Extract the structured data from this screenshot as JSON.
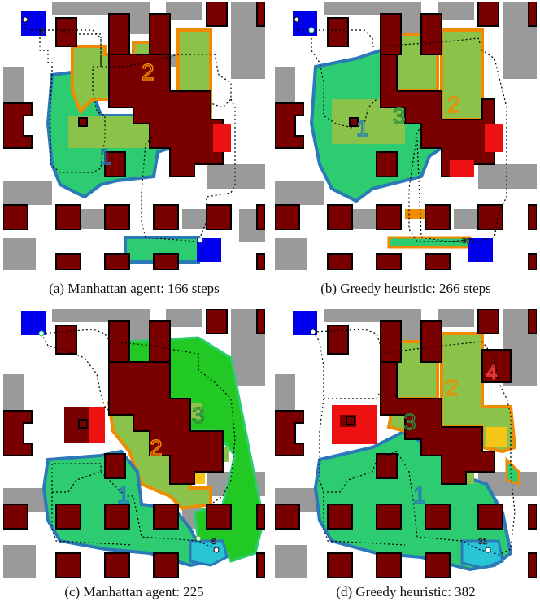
{
  "colors": {
    "background": "#ffffff",
    "wall": "#7a0000",
    "obstacle": "#9a9a9a",
    "goal": "#0000ee",
    "region_green": "#2ecc71",
    "region_lime": "#8bc34a",
    "region_bright_green": "#22c922",
    "region_red": "#ee1111",
    "region_yellow": "#f5c518",
    "region_cyan": "#29c4d6",
    "outline_blue": "#2a7ab8",
    "outline_orange": "#f08a00",
    "path": "#000000"
  },
  "panels": [
    {
      "caption": "(a) Manhattan agent: 166 steps",
      "region_labels": [
        {
          "text": "1",
          "color": "#2a7ab8"
        },
        {
          "text": "2",
          "color": "#f08a00"
        }
      ],
      "agent_markers": [
        {
          "text": "5"
        }
      ]
    },
    {
      "caption": "(b) Greedy heuristic: 266 steps",
      "region_labels": [
        {
          "text": "1",
          "color": "#2a7ab8"
        },
        {
          "text": "2",
          "color": "#f08a00"
        },
        {
          "text": "3",
          "color": "#2e8b3a"
        }
      ],
      "agent_markers": [
        {
          "text": "31"
        }
      ]
    },
    {
      "caption": "(c) Manhattan agent: 225",
      "region_labels": [
        {
          "text": "1",
          "color": "#2a7ab8"
        },
        {
          "text": "2",
          "color": "#f08a00"
        },
        {
          "text": "3",
          "color": "#2e8b3a"
        }
      ],
      "agent_markers": [
        {
          "text": "6"
        }
      ]
    },
    {
      "caption": "(d) Greedy heuristic: 382",
      "region_labels": [
        {
          "text": "1",
          "color": "#2a7ab8"
        },
        {
          "text": "2",
          "color": "#f08a00"
        },
        {
          "text": "3",
          "color": "#2e8b3a"
        },
        {
          "text": "4",
          "color": "#e53935"
        }
      ],
      "agent_markers": [
        {
          "text": "31"
        }
      ]
    }
  ]
}
